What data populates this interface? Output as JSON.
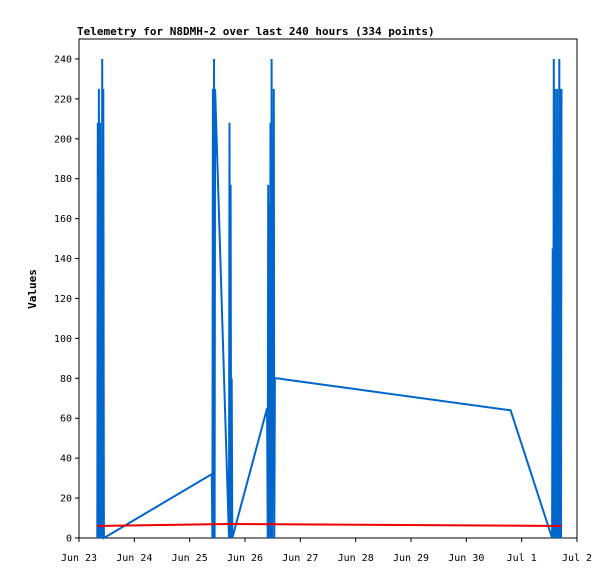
{
  "chart_data": {
    "type": "line",
    "title": "Telemetry for N8DMH-2 over last 240 hours (334 points)",
    "ylabel": "Values",
    "xlabel": "",
    "ylim": [
      0,
      250
    ],
    "xlim": [
      "Jun 23",
      "Jul 2"
    ],
    "y_ticks": [
      0,
      20,
      40,
      60,
      80,
      100,
      120,
      140,
      160,
      180,
      200,
      220,
      240
    ],
    "x_ticks": [
      "Jun 23",
      "Jun 24",
      "Jun 25",
      "Jun 26",
      "Jun 27",
      "Jun 28",
      "Jun 29",
      "Jun 30",
      "Jul 1",
      "Jul 2"
    ],
    "grid": false,
    "series": [
      {
        "color": "#0066cc",
        "x": [
          0.33,
          0.34,
          0.35,
          0.36,
          0.37,
          0.38,
          0.39,
          0.4,
          0.41,
          0.42,
          0.43,
          0.44,
          0.45,
          2.4,
          2.41,
          2.42,
          2.43,
          2.44,
          2.45,
          2.46,
          2.71,
          2.72,
          2.73,
          2.74,
          2.75,
          2.76,
          2.77,
          3.4,
          3.41,
          3.42,
          3.43,
          3.44,
          3.45,
          3.46,
          3.47,
          3.48,
          3.49,
          3.5,
          3.51,
          3.52,
          3.53,
          3.54,
          3.55,
          3.56,
          3.57,
          7.8,
          8.55,
          8.56,
          8.57,
          8.58,
          8.59,
          8.6,
          8.61,
          8.62,
          8.63,
          8.64,
          8.65,
          8.66,
          8.67,
          8.68,
          8.69,
          8.7,
          8.71,
          8.72
        ],
        "y": [
          0,
          208,
          0,
          225,
          0,
          208,
          0,
          145,
          0,
          240,
          0,
          225,
          0,
          32,
          0,
          225,
          0,
          240,
          0,
          225,
          0,
          208,
          0,
          177,
          0,
          80,
          0,
          65,
          0,
          177,
          0,
          168,
          0,
          208,
          0,
          240,
          0,
          99,
          45,
          225,
          0,
          80,
          80,
          80,
          80,
          64,
          0,
          145,
          0,
          240,
          0,
          225,
          0,
          121,
          0,
          225,
          0,
          145,
          0,
          240,
          0,
          225,
          0,
          225
        ]
      },
      {
        "color": "#ee0000",
        "x": [
          0.33,
          2.7,
          8.72
        ],
        "y": [
          6,
          7,
          6
        ]
      }
    ]
  }
}
